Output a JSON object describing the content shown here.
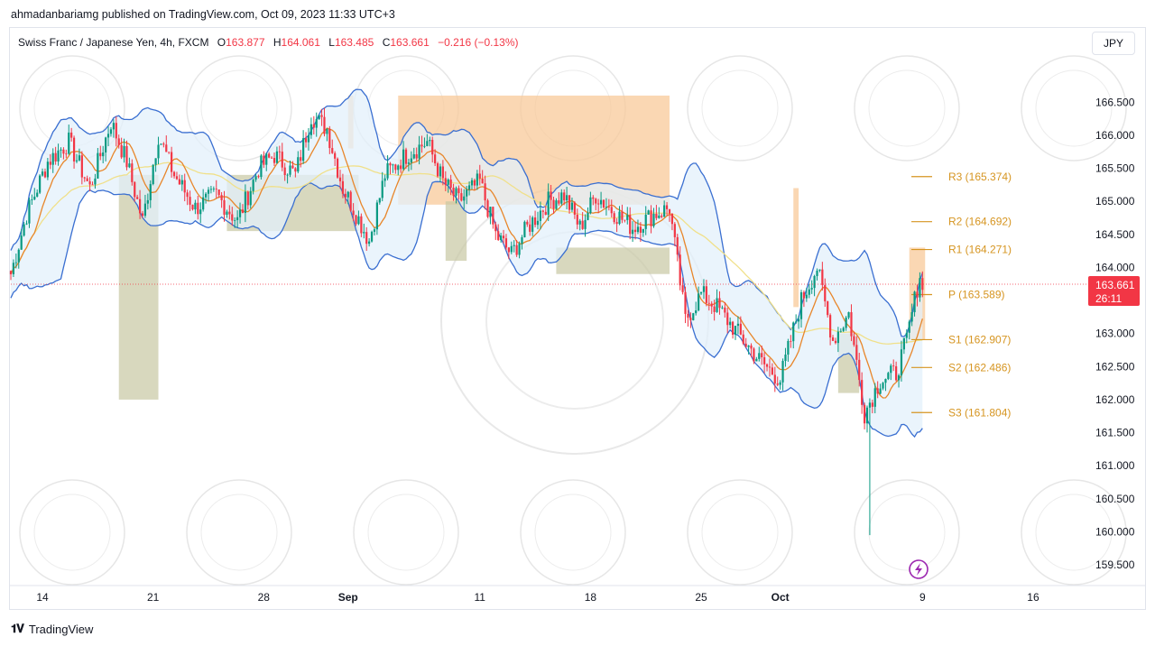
{
  "publisher_line": "ahmadanbariamg published on TradingView.com, Oct 09, 2023 11:33 UTC+3",
  "legend": {
    "symbol": "Swiss Franc / Japanese Yen, 4h, FXCM",
    "o_label": "O",
    "o": "163.877",
    "h_label": "H",
    "h": "164.061",
    "l_label": "L",
    "l": "163.485",
    "c_label": "C",
    "c": "163.661",
    "change": "−0.216 (−0.13%)"
  },
  "currency_button": "JPY",
  "footer_brand": "TradingView",
  "colors": {
    "up": "#089981",
    "down": "#f23645",
    "band": "#3a6fd1",
    "ema_orange": "#e8862a",
    "ema_yellow": "#f0e08a",
    "zone_peach": "#f8c99a",
    "zone_olive": "#c7c8a3",
    "pivot": "#d69521"
  },
  "chart_data": {
    "type": "candlestick",
    "title": "Swiss Franc / Japanese Yen, 4h, FXCM",
    "ylim": [
      159.2,
      167.2
    ],
    "y_ticks": [
      "166.500",
      "166.000",
      "165.500",
      "165.000",
      "164.500",
      "164.000",
      "163.500",
      "163.000",
      "162.500",
      "162.000",
      "161.500",
      "161.000",
      "160.500",
      "160.000",
      "159.500"
    ],
    "x_ticks": [
      {
        "label": "14",
        "bold": false,
        "i": 12
      },
      {
        "label": "21",
        "bold": false,
        "i": 54
      },
      {
        "label": "28",
        "bold": false,
        "i": 96
      },
      {
        "label": "Sep",
        "bold": true,
        "i": 128
      },
      {
        "label": "11",
        "bold": false,
        "i": 178
      },
      {
        "label": "18",
        "bold": false,
        "i": 220
      },
      {
        "label": "25",
        "bold": false,
        "i": 262
      },
      {
        "label": "Oct",
        "bold": true,
        "i": 292
      },
      {
        "label": "9",
        "bold": false,
        "i": 346
      },
      {
        "label": "16",
        "bold": false,
        "i": 388
      }
    ],
    "bar_count": 347,
    "last_price": "163.661",
    "countdown": "26:11",
    "pivots": [
      {
        "label": "R3 (165.374)",
        "value": 165.374
      },
      {
        "label": "R2 (164.692)",
        "value": 164.692
      },
      {
        "label": "R1 (164.271)",
        "value": 164.271
      },
      {
        "label": "P (163.589)",
        "value": 163.589
      },
      {
        "label": "S1 (162.907)",
        "value": 162.907
      },
      {
        "label": "S2 (162.486)",
        "value": 162.486
      },
      {
        "label": "S3 (161.804)",
        "value": 161.804
      }
    ],
    "close_path": [
      [
        0,
        163.9
      ],
      [
        6,
        164.8
      ],
      [
        14,
        165.6
      ],
      [
        22,
        165.9
      ],
      [
        30,
        165.2
      ],
      [
        38,
        166.2
      ],
      [
        44,
        165.6
      ],
      [
        50,
        164.7
      ],
      [
        56,
        166.0
      ],
      [
        62,
        165.4
      ],
      [
        70,
        164.9
      ],
      [
        78,
        165.1
      ],
      [
        86,
        164.7
      ],
      [
        94,
        165.5
      ],
      [
        100,
        165.7
      ],
      [
        108,
        165.4
      ],
      [
        114,
        166.3
      ],
      [
        120,
        166.1
      ],
      [
        126,
        165.2
      ],
      [
        130,
        164.9
      ],
      [
        136,
        164.4
      ],
      [
        142,
        165.4
      ],
      [
        150,
        165.7
      ],
      [
        158,
        165.9
      ],
      [
        164,
        165.3
      ],
      [
        170,
        165.0
      ],
      [
        178,
        165.3
      ],
      [
        184,
        164.5
      ],
      [
        190,
        164.2
      ],
      [
        196,
        164.6
      ],
      [
        204,
        165.0
      ],
      [
        210,
        165.1
      ],
      [
        216,
        164.6
      ],
      [
        222,
        165.1
      ],
      [
        230,
        164.8
      ],
      [
        236,
        164.6
      ],
      [
        244,
        164.8
      ],
      [
        250,
        164.9
      ],
      [
        256,
        163.2
      ],
      [
        262,
        163.6
      ],
      [
        268,
        163.4
      ],
      [
        276,
        163.0
      ],
      [
        284,
        162.6
      ],
      [
        292,
        162.3
      ],
      [
        300,
        163.5
      ],
      [
        306,
        164.0
      ],
      [
        312,
        162.9
      ],
      [
        318,
        163.3
      ],
      [
        324,
        161.8
      ],
      [
        330,
        162.3
      ],
      [
        336,
        162.4
      ],
      [
        340,
        162.9
      ],
      [
        346,
        164.1
      ],
      [
        349,
        163.66
      ]
    ],
    "spike": {
      "i": 326,
      "low": 159.95
    },
    "zones": [
      {
        "color": "peach",
        "i0": 128,
        "i1": 130,
        "low": 165.8,
        "high": 166.6
      },
      {
        "color": "peach",
        "i0": 147,
        "i1": 250,
        "low": 164.95,
        "high": 166.6
      },
      {
        "color": "peach",
        "i0": 297,
        "i1": 299,
        "low": 163.4,
        "high": 165.2
      },
      {
        "color": "peach",
        "i0": 341,
        "i1": 347,
        "low": 162.9,
        "high": 164.3
      },
      {
        "color": "olive",
        "i0": 41,
        "i1": 56,
        "low": 162.0,
        "high": 165.4
      },
      {
        "color": "olive",
        "i0": 82,
        "i1": 132,
        "low": 164.55,
        "high": 165.4
      },
      {
        "color": "olive",
        "i0": 165,
        "i1": 173,
        "low": 164.1,
        "high": 165.0
      },
      {
        "color": "olive",
        "i0": 207,
        "i1": 250,
        "low": 163.9,
        "high": 164.3
      },
      {
        "color": "olive",
        "i0": 314,
        "i1": 322,
        "low": 162.1,
        "high": 163.0
      }
    ]
  }
}
